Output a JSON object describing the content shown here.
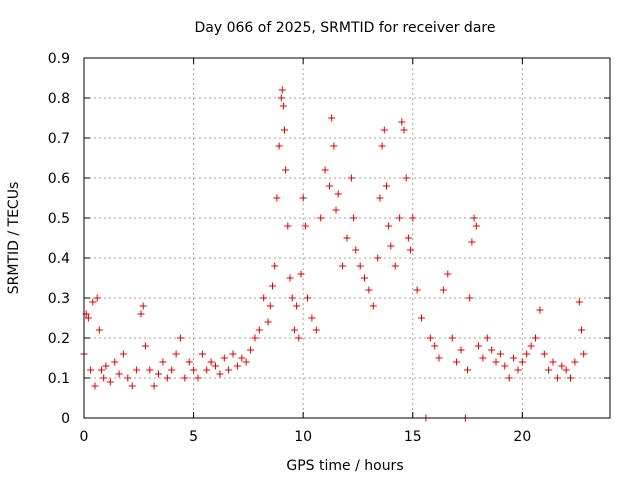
{
  "chart_data": {
    "type": "scatter",
    "title": "Day 066 of 2025, SRMTID for receiver dare",
    "xlabel": "GPS time / hours",
    "ylabel": "SRMTID / TECUs",
    "xlim": [
      0,
      24
    ],
    "ylim": [
      0,
      0.9
    ],
    "x_ticks": [
      0,
      5,
      10,
      15,
      20
    ],
    "x_tick_labels": [
      "0",
      "5",
      "10",
      "15",
      "20"
    ],
    "y_ticks": [
      0,
      0.1,
      0.2,
      0.3,
      0.4,
      0.5,
      0.6,
      0.7,
      0.8,
      0.9
    ],
    "y_tick_labels": [
      "0",
      "0.1",
      "0.2",
      "0.3",
      "0.4",
      "0.5",
      "0.6",
      "0.7",
      "0.8",
      "0.9"
    ],
    "grid": true,
    "marker": "plus",
    "color": "#e00000",
    "series": [
      {
        "name": "SRMTID",
        "points": [
          [
            0.0,
            0.16
          ],
          [
            0.1,
            0.26
          ],
          [
            0.2,
            0.25
          ],
          [
            0.3,
            0.12
          ],
          [
            0.4,
            0.29
          ],
          [
            0.5,
            0.08
          ],
          [
            0.6,
            0.3
          ],
          [
            0.7,
            0.22
          ],
          [
            0.8,
            0.12
          ],
          [
            0.9,
            0.1
          ],
          [
            1.0,
            0.13
          ],
          [
            1.2,
            0.09
          ],
          [
            1.4,
            0.14
          ],
          [
            1.6,
            0.11
          ],
          [
            1.8,
            0.16
          ],
          [
            2.0,
            0.1
          ],
          [
            2.2,
            0.08
          ],
          [
            2.4,
            0.12
          ],
          [
            2.6,
            0.26
          ],
          [
            2.7,
            0.28
          ],
          [
            2.8,
            0.18
          ],
          [
            3.0,
            0.12
          ],
          [
            3.2,
            0.08
          ],
          [
            3.4,
            0.11
          ],
          [
            3.6,
            0.14
          ],
          [
            3.8,
            0.1
          ],
          [
            4.0,
            0.12
          ],
          [
            4.2,
            0.16
          ],
          [
            4.4,
            0.2
          ],
          [
            4.6,
            0.1
          ],
          [
            4.8,
            0.14
          ],
          [
            5.0,
            0.12
          ],
          [
            5.2,
            0.1
          ],
          [
            5.4,
            0.16
          ],
          [
            5.6,
            0.12
          ],
          [
            5.8,
            0.14
          ],
          [
            6.0,
            0.13
          ],
          [
            6.2,
            0.11
          ],
          [
            6.4,
            0.15
          ],
          [
            6.6,
            0.12
          ],
          [
            6.8,
            0.16
          ],
          [
            7.0,
            0.13
          ],
          [
            7.2,
            0.15
          ],
          [
            7.4,
            0.14
          ],
          [
            7.6,
            0.17
          ],
          [
            7.8,
            0.2
          ],
          [
            8.0,
            0.22
          ],
          [
            8.2,
            0.3
          ],
          [
            8.4,
            0.24
          ],
          [
            8.5,
            0.28
          ],
          [
            8.6,
            0.33
          ],
          [
            8.7,
            0.38
          ],
          [
            8.8,
            0.55
          ],
          [
            8.9,
            0.68
          ],
          [
            9.0,
            0.8
          ],
          [
            9.05,
            0.82
          ],
          [
            9.1,
            0.78
          ],
          [
            9.15,
            0.72
          ],
          [
            9.2,
            0.62
          ],
          [
            9.3,
            0.48
          ],
          [
            9.4,
            0.35
          ],
          [
            9.5,
            0.3
          ],
          [
            9.6,
            0.22
          ],
          [
            9.7,
            0.28
          ],
          [
            9.8,
            0.2
          ],
          [
            9.9,
            0.36
          ],
          [
            10.0,
            0.55
          ],
          [
            10.1,
            0.48
          ],
          [
            10.2,
            0.3
          ],
          [
            10.4,
            0.25
          ],
          [
            10.6,
            0.22
          ],
          [
            10.8,
            0.5
          ],
          [
            11.0,
            0.62
          ],
          [
            11.2,
            0.58
          ],
          [
            11.3,
            0.75
          ],
          [
            11.4,
            0.68
          ],
          [
            11.5,
            0.52
          ],
          [
            11.6,
            0.56
          ],
          [
            11.8,
            0.38
          ],
          [
            12.0,
            0.45
          ],
          [
            12.2,
            0.6
          ],
          [
            12.3,
            0.5
          ],
          [
            12.4,
            0.42
          ],
          [
            12.6,
            0.38
          ],
          [
            12.8,
            0.35
          ],
          [
            13.0,
            0.32
          ],
          [
            13.2,
            0.28
          ],
          [
            13.4,
            0.4
          ],
          [
            13.5,
            0.55
          ],
          [
            13.6,
            0.68
          ],
          [
            13.7,
            0.72
          ],
          [
            13.8,
            0.58
          ],
          [
            13.9,
            0.48
          ],
          [
            14.0,
            0.43
          ],
          [
            14.2,
            0.38
          ],
          [
            14.4,
            0.5
          ],
          [
            14.5,
            0.74
          ],
          [
            14.6,
            0.72
          ],
          [
            14.7,
            0.6
          ],
          [
            14.8,
            0.45
          ],
          [
            14.9,
            0.42
          ],
          [
            15.0,
            0.5
          ],
          [
            15.2,
            0.32
          ],
          [
            15.4,
            0.25
          ],
          [
            15.6,
            0.0
          ],
          [
            15.8,
            0.2
          ],
          [
            16.0,
            0.18
          ],
          [
            16.2,
            0.15
          ],
          [
            16.4,
            0.32
          ],
          [
            16.6,
            0.36
          ],
          [
            16.8,
            0.2
          ],
          [
            17.0,
            0.14
          ],
          [
            17.2,
            0.17
          ],
          [
            17.4,
            0.0
          ],
          [
            17.5,
            0.12
          ],
          [
            17.6,
            0.3
          ],
          [
            17.7,
            0.44
          ],
          [
            17.8,
            0.5
          ],
          [
            17.9,
            0.48
          ],
          [
            18.0,
            0.18
          ],
          [
            18.2,
            0.15
          ],
          [
            18.4,
            0.2
          ],
          [
            18.6,
            0.17
          ],
          [
            18.8,
            0.14
          ],
          [
            19.0,
            0.16
          ],
          [
            19.2,
            0.13
          ],
          [
            19.4,
            0.1
          ],
          [
            19.6,
            0.15
          ],
          [
            19.8,
            0.12
          ],
          [
            20.0,
            0.14
          ],
          [
            20.2,
            0.16
          ],
          [
            20.4,
            0.18
          ],
          [
            20.6,
            0.2
          ],
          [
            20.8,
            0.27
          ],
          [
            21.0,
            0.16
          ],
          [
            21.2,
            0.12
          ],
          [
            21.4,
            0.14
          ],
          [
            21.6,
            0.1
          ],
          [
            21.8,
            0.13
          ],
          [
            22.0,
            0.12
          ],
          [
            22.2,
            0.1
          ],
          [
            22.4,
            0.14
          ],
          [
            22.6,
            0.29
          ],
          [
            22.7,
            0.22
          ],
          [
            22.8,
            0.16
          ]
        ]
      }
    ]
  }
}
